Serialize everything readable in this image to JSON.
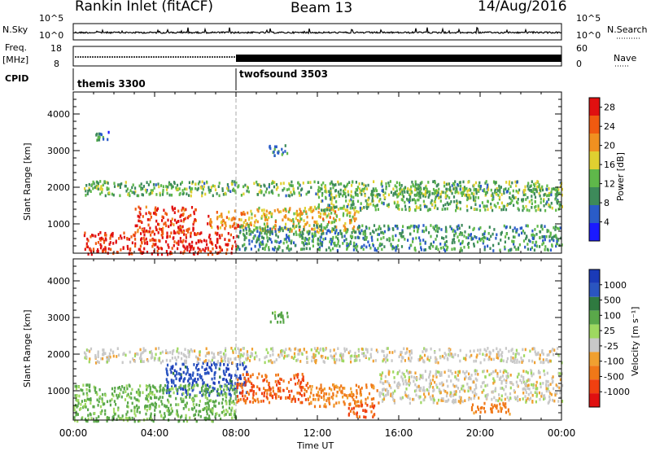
{
  "header": {
    "title": "Rankin Inlet (fitACF)",
    "beam": "Beam 13",
    "date": "14/Aug/2016"
  },
  "summary_panels": {
    "nsky_label": "N.Sky",
    "nsky_ticks": [
      "10^5",
      "10^0"
    ],
    "nsearch_label": "N.Search",
    "nsearch_ticks": [
      "10^5",
      "10^0"
    ],
    "freq_label_1": "Freq.",
    "freq_label_2": "[MHz]",
    "freq_ticks": [
      "18",
      "8"
    ],
    "nave_label": "Nave",
    "nave_ticks": [
      "60",
      "0"
    ],
    "cpid_label": "CPID",
    "cpid_entries": [
      "themis 3300",
      "twofsound 3503"
    ]
  },
  "colors": {
    "power_scale": [
      "#1a1aff",
      "#2a5cc8",
      "#3d8a5a",
      "#5fb84a",
      "#e0d030",
      "#f09020",
      "#f05a10",
      "#e01010"
    ],
    "velocity_scale": [
      "#1a3ab8",
      "#2a55c0",
      "#2f7a40",
      "#5aa84a",
      "#9ed860",
      "#c8c8c8",
      "#f0a030",
      "#f07818",
      "#f04010",
      "#e01010"
    ],
    "ground_scatter": "#b0b0b0"
  },
  "chart_data": [
    {
      "type": "heatmap",
      "name": "power",
      "xlabel": "",
      "ylabel": "Slant Range [km]",
      "xlim": [
        "00:00",
        "00:00"
      ],
      "ylim": [
        200,
        4600
      ],
      "yticks": [
        1000,
        2000,
        3000,
        4000
      ],
      "colorbar_label": "Power [dB]",
      "colorbar_ticks": [
        4,
        8,
        12,
        16,
        20,
        24,
        28
      ],
      "colorbar_range": [
        0,
        30
      ],
      "bands": [
        {
          "x": [
            0.5,
            8.0
          ],
          "y": [
            200,
            800
          ],
          "level": 28
        },
        {
          "x": [
            3.0,
            6.0
          ],
          "y": [
            800,
            1500
          ],
          "level": 26
        },
        {
          "x": [
            6.5,
            8.5
          ],
          "y": [
            900,
            1400
          ],
          "level": 22
        },
        {
          "x": [
            8.5,
            14.0
          ],
          "y": [
            800,
            1500
          ],
          "level": 18
        },
        {
          "x": [
            0.5,
            24.0
          ],
          "y": [
            1800,
            2200
          ],
          "level": 12
        },
        {
          "x": [
            8.0,
            24.0
          ],
          "y": [
            300,
            1000
          ],
          "level": 10
        },
        {
          "x": [
            12.0,
            24.0
          ],
          "y": [
            1400,
            2000
          ],
          "level": 12
        },
        {
          "x": [
            9.5,
            10.5
          ],
          "y": [
            2900,
            3200
          ],
          "level": 8
        },
        {
          "x": [
            1.0,
            1.8
          ],
          "y": [
            3300,
            3600
          ],
          "level": 8
        }
      ]
    },
    {
      "type": "heatmap",
      "name": "velocity",
      "xlabel": "Time UT",
      "ylabel": "Slant Range [km]",
      "xlim": [
        "00:00",
        "00:00"
      ],
      "ylim": [
        200,
        4600
      ],
      "xticks": [
        "00:00",
        "04:00",
        "08:00",
        "12:00",
        "16:00",
        "20:00",
        "00:00"
      ],
      "yticks": [
        1000,
        2000,
        3000,
        4000
      ],
      "colorbar_label": "Velocity [m s⁻¹]",
      "colorbar_ticks": [
        1000,
        500,
        100,
        25,
        -25,
        -100,
        -500,
        -1000
      ],
      "bands": [
        {
          "x": [
            4.5,
            8.5
          ],
          "y": [
            900,
            1800
          ],
          "level": 800
        },
        {
          "x": [
            8.0,
            11.5
          ],
          "y": [
            700,
            1500
          ],
          "level": -300
        },
        {
          "x": [
            11.5,
            15.0
          ],
          "y": [
            600,
            1200
          ],
          "level": -120
        },
        {
          "x": [
            13.5,
            14.8
          ],
          "y": [
            300,
            700
          ],
          "level": -400
        },
        {
          "x": [
            0.5,
            24.0
          ],
          "y": [
            1800,
            2200
          ],
          "level": 0
        },
        {
          "x": [
            0.0,
            8.0
          ],
          "y": [
            200,
            1200
          ],
          "level": 120
        },
        {
          "x": [
            15.0,
            24.0
          ],
          "y": [
            700,
            1600
          ],
          "level": 0
        },
        {
          "x": [
            19.5,
            21.5
          ],
          "y": [
            400,
            700
          ],
          "level": -150
        },
        {
          "x": [
            9.5,
            10.5
          ],
          "y": [
            2900,
            3200
          ],
          "level": 150
        }
      ]
    }
  ]
}
